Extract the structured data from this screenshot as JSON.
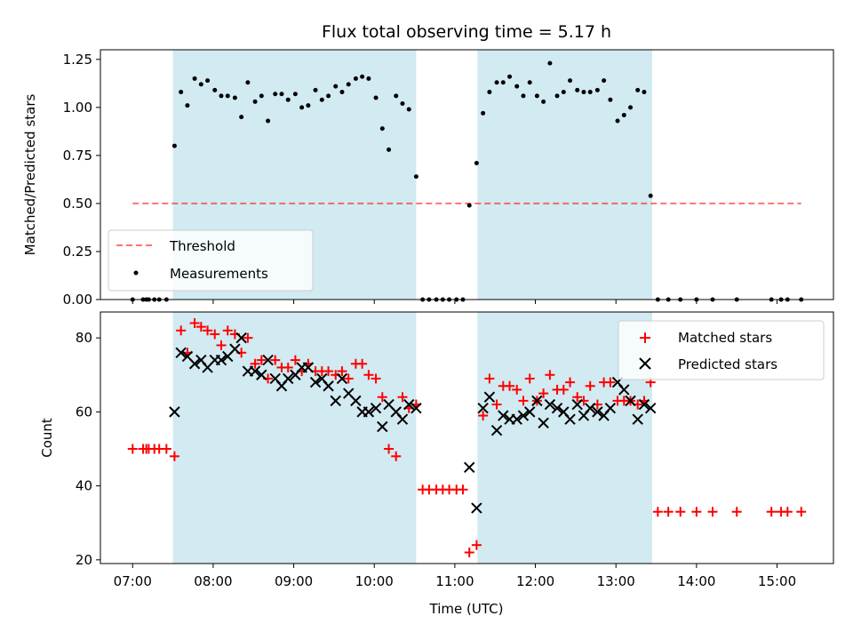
{
  "colors": {
    "span_fill": "#add8e6",
    "threshold": "#ff0000",
    "measurement": "#000000",
    "matched": "#ff0000",
    "predicted": "#000000"
  },
  "chart_data": [
    {
      "type": "scatter",
      "title": "Flux total observing time = 5.17 h",
      "xlabel": "",
      "ylabel": "Matched/Predicted stars",
      "x_unit": "hours (UTC)",
      "xlim": [
        6.6,
        15.7
      ],
      "ylim": [
        0,
        1.3
      ],
      "yticks": [
        0.0,
        0.25,
        0.5,
        0.75,
        1.0,
        1.25
      ],
      "ytick_labels": [
        "0.00",
        "0.25",
        "0.50",
        "0.75",
        "1.00",
        "1.25"
      ],
      "grid": false,
      "legend": {
        "placement": "lower-left",
        "entries": [
          {
            "label": "Threshold",
            "style": "dashed-line"
          },
          {
            "label": "Measurements",
            "style": "dot"
          }
        ]
      },
      "observing_spans": [
        [
          7.5,
          10.52
        ],
        [
          11.28,
          13.45
        ]
      ],
      "threshold": {
        "value": 0.5,
        "x_range": [
          7.0,
          15.3
        ]
      },
      "series": [
        {
          "name": "Measurements",
          "points": [
            [
              7.0,
              0.0
            ],
            [
              7.13,
              0.0
            ],
            [
              7.17,
              0.0
            ],
            [
              7.2,
              0.0
            ],
            [
              7.27,
              0.0
            ],
            [
              7.33,
              0.0
            ],
            [
              7.42,
              0.0
            ],
            [
              7.52,
              0.8
            ],
            [
              7.6,
              1.08
            ],
            [
              7.68,
              1.01
            ],
            [
              7.77,
              1.15
            ],
            [
              7.85,
              1.12
            ],
            [
              7.93,
              1.14
            ],
            [
              8.02,
              1.09
            ],
            [
              8.1,
              1.06
            ],
            [
              8.18,
              1.06
            ],
            [
              8.27,
              1.05
            ],
            [
              8.35,
              0.95
            ],
            [
              8.43,
              1.13
            ],
            [
              8.52,
              1.03
            ],
            [
              8.6,
              1.06
            ],
            [
              8.68,
              0.93
            ],
            [
              8.77,
              1.07
            ],
            [
              8.85,
              1.07
            ],
            [
              8.93,
              1.04
            ],
            [
              9.02,
              1.07
            ],
            [
              9.1,
              1.0
            ],
            [
              9.18,
              1.01
            ],
            [
              9.27,
              1.09
            ],
            [
              9.35,
              1.04
            ],
            [
              9.43,
              1.06
            ],
            [
              9.52,
              1.11
            ],
            [
              9.6,
              1.08
            ],
            [
              9.68,
              1.12
            ],
            [
              9.77,
              1.15
            ],
            [
              9.85,
              1.16
            ],
            [
              9.93,
              1.15
            ],
            [
              10.02,
              1.05
            ],
            [
              10.1,
              0.89
            ],
            [
              10.18,
              0.78
            ],
            [
              10.27,
              1.06
            ],
            [
              10.35,
              1.02
            ],
            [
              10.43,
              0.99
            ],
            [
              10.52,
              0.64
            ],
            [
              10.6,
              0.0
            ],
            [
              10.68,
              0.0
            ],
            [
              10.77,
              0.0
            ],
            [
              10.85,
              0.0
            ],
            [
              10.93,
              0.0
            ],
            [
              11.02,
              0.0
            ],
            [
              11.1,
              0.0
            ],
            [
              11.18,
              0.49
            ],
            [
              11.27,
              0.71
            ],
            [
              11.35,
              0.97
            ],
            [
              11.43,
              1.08
            ],
            [
              11.52,
              1.13
            ],
            [
              11.6,
              1.13
            ],
            [
              11.68,
              1.16
            ],
            [
              11.77,
              1.11
            ],
            [
              11.85,
              1.06
            ],
            [
              11.93,
              1.13
            ],
            [
              12.02,
              1.06
            ],
            [
              12.1,
              1.03
            ],
            [
              12.18,
              1.23
            ],
            [
              12.27,
              1.06
            ],
            [
              12.35,
              1.08
            ],
            [
              12.43,
              1.14
            ],
            [
              12.52,
              1.09
            ],
            [
              12.6,
              1.08
            ],
            [
              12.68,
              1.08
            ],
            [
              12.77,
              1.09
            ],
            [
              12.85,
              1.14
            ],
            [
              12.93,
              1.04
            ],
            [
              13.02,
              0.93
            ],
            [
              13.1,
              0.96
            ],
            [
              13.18,
              1.0
            ],
            [
              13.27,
              1.09
            ],
            [
              13.35,
              1.08
            ],
            [
              13.43,
              0.54
            ],
            [
              13.52,
              0.0
            ],
            [
              13.65,
              0.0
            ],
            [
              13.8,
              0.0
            ],
            [
              14.0,
              0.0
            ],
            [
              14.2,
              0.0
            ],
            [
              14.5,
              0.0
            ],
            [
              14.93,
              0.0
            ],
            [
              15.05,
              0.0
            ],
            [
              15.13,
              0.0
            ],
            [
              15.3,
              0.0
            ]
          ]
        }
      ]
    },
    {
      "type": "scatter",
      "title": "",
      "xlabel": "Time (UTC)",
      "ylabel": "Count",
      "x_unit": "hours (UTC)",
      "xlim": [
        6.6,
        15.7
      ],
      "ylim": [
        19,
        87
      ],
      "yticks": [
        20,
        40,
        60,
        80
      ],
      "ytick_labels": [
        "20",
        "40",
        "60",
        "80"
      ],
      "xticks": [
        7,
        8,
        9,
        10,
        11,
        12,
        13,
        14,
        15
      ],
      "xtick_labels": [
        "07:00",
        "08:00",
        "09:00",
        "10:00",
        "11:00",
        "12:00",
        "13:00",
        "14:00",
        "15:00"
      ],
      "grid": false,
      "legend": {
        "placement": "top-right",
        "entries": [
          {
            "label": "Matched stars",
            "style": "plus"
          },
          {
            "label": "Predicted stars",
            "style": "cross"
          }
        ]
      },
      "observing_spans": [
        [
          7.5,
          10.52
        ],
        [
          11.28,
          13.45
        ]
      ],
      "series": [
        {
          "name": "Matched stars",
          "points": [
            [
              7.0,
              50
            ],
            [
              7.13,
              50
            ],
            [
              7.17,
              50
            ],
            [
              7.2,
              50
            ],
            [
              7.27,
              50
            ],
            [
              7.33,
              50
            ],
            [
              7.42,
              50
            ],
            [
              7.52,
              48
            ],
            [
              7.6,
              82
            ],
            [
              7.68,
              76
            ],
            [
              7.77,
              84
            ],
            [
              7.85,
              83
            ],
            [
              7.93,
              82
            ],
            [
              8.02,
              81
            ],
            [
              8.1,
              78
            ],
            [
              8.18,
              82
            ],
            [
              8.27,
              81
            ],
            [
              8.35,
              76
            ],
            [
              8.43,
              80
            ],
            [
              8.52,
              73
            ],
            [
              8.6,
              74
            ],
            [
              8.68,
              69
            ],
            [
              8.77,
              74
            ],
            [
              8.85,
              72
            ],
            [
              8.93,
              72
            ],
            [
              9.02,
              74
            ],
            [
              9.1,
              71
            ],
            [
              9.18,
              73
            ],
            [
              9.27,
              71
            ],
            [
              9.35,
              71
            ],
            [
              9.43,
              71
            ],
            [
              9.52,
              70
            ],
            [
              9.6,
              71
            ],
            [
              9.68,
              69
            ],
            [
              9.77,
              73
            ],
            [
              9.85,
              73
            ],
            [
              9.93,
              70
            ],
            [
              10.02,
              69
            ],
            [
              10.1,
              64
            ],
            [
              10.18,
              50
            ],
            [
              10.27,
              48
            ],
            [
              10.35,
              64
            ],
            [
              10.43,
              61
            ],
            [
              10.52,
              62
            ],
            [
              10.6,
              39
            ],
            [
              10.68,
              39
            ],
            [
              10.77,
              39
            ],
            [
              10.85,
              39
            ],
            [
              10.93,
              39
            ],
            [
              11.02,
              39
            ],
            [
              11.1,
              39
            ],
            [
              11.18,
              22
            ],
            [
              11.27,
              24
            ],
            [
              11.35,
              59
            ],
            [
              11.43,
              69
            ],
            [
              11.52,
              62
            ],
            [
              11.6,
              67
            ],
            [
              11.68,
              67
            ],
            [
              11.77,
              66
            ],
            [
              11.85,
              63
            ],
            [
              11.93,
              69
            ],
            [
              12.02,
              63
            ],
            [
              12.1,
              65
            ],
            [
              12.18,
              70
            ],
            [
              12.27,
              66
            ],
            [
              12.35,
              66
            ],
            [
              12.43,
              68
            ],
            [
              12.52,
              64
            ],
            [
              12.6,
              63
            ],
            [
              12.68,
              67
            ],
            [
              12.77,
              62
            ],
            [
              12.85,
              68
            ],
            [
              12.93,
              68
            ],
            [
              13.02,
              63
            ],
            [
              13.1,
              63
            ],
            [
              13.18,
              63
            ],
            [
              13.27,
              62
            ],
            [
              13.35,
              63
            ],
            [
              13.43,
              68
            ],
            [
              13.52,
              33
            ],
            [
              13.65,
              33
            ],
            [
              13.8,
              33
            ],
            [
              14.0,
              33
            ],
            [
              14.2,
              33
            ],
            [
              14.5,
              33
            ],
            [
              14.93,
              33
            ],
            [
              15.05,
              33
            ],
            [
              15.13,
              33
            ],
            [
              15.3,
              33
            ]
          ]
        },
        {
          "name": "Predicted stars",
          "points": [
            [
              7.52,
              60
            ],
            [
              7.6,
              76
            ],
            [
              7.68,
              75
            ],
            [
              7.77,
              73
            ],
            [
              7.85,
              74
            ],
            [
              7.93,
              72
            ],
            [
              8.02,
              74
            ],
            [
              8.1,
              74
            ],
            [
              8.18,
              75
            ],
            [
              8.27,
              77
            ],
            [
              8.35,
              80
            ],
            [
              8.43,
              71
            ],
            [
              8.52,
              71
            ],
            [
              8.6,
              70
            ],
            [
              8.68,
              74
            ],
            [
              8.77,
              69
            ],
            [
              8.85,
              67
            ],
            [
              8.93,
              69
            ],
            [
              9.02,
              70
            ],
            [
              9.1,
              72
            ],
            [
              9.18,
              72
            ],
            [
              9.27,
              68
            ],
            [
              9.35,
              69
            ],
            [
              9.43,
              67
            ],
            [
              9.52,
              63
            ],
            [
              9.6,
              69
            ],
            [
              9.68,
              65
            ],
            [
              9.77,
              63
            ],
            [
              9.85,
              60
            ],
            [
              9.93,
              60
            ],
            [
              10.02,
              61
            ],
            [
              10.1,
              56
            ],
            [
              10.18,
              62
            ],
            [
              10.27,
              60
            ],
            [
              10.35,
              58
            ],
            [
              10.43,
              62
            ],
            [
              10.52,
              61
            ],
            [
              11.18,
              45
            ],
            [
              11.27,
              34
            ],
            [
              11.35,
              61
            ],
            [
              11.43,
              64
            ],
            [
              11.52,
              55
            ],
            [
              11.6,
              59
            ],
            [
              11.68,
              58
            ],
            [
              11.77,
              58
            ],
            [
              11.85,
              59
            ],
            [
              11.93,
              60
            ],
            [
              12.02,
              63
            ],
            [
              12.1,
              57
            ],
            [
              12.18,
              62
            ],
            [
              12.27,
              61
            ],
            [
              12.35,
              60
            ],
            [
              12.43,
              58
            ],
            [
              12.52,
              62
            ],
            [
              12.6,
              59
            ],
            [
              12.68,
              61
            ],
            [
              12.77,
              60
            ],
            [
              12.85,
              59
            ],
            [
              12.93,
              61
            ],
            [
              13.02,
              68
            ],
            [
              13.1,
              66
            ],
            [
              13.18,
              63
            ],
            [
              13.27,
              58
            ],
            [
              13.35,
              62
            ],
            [
              13.43,
              61
            ]
          ]
        }
      ]
    }
  ]
}
